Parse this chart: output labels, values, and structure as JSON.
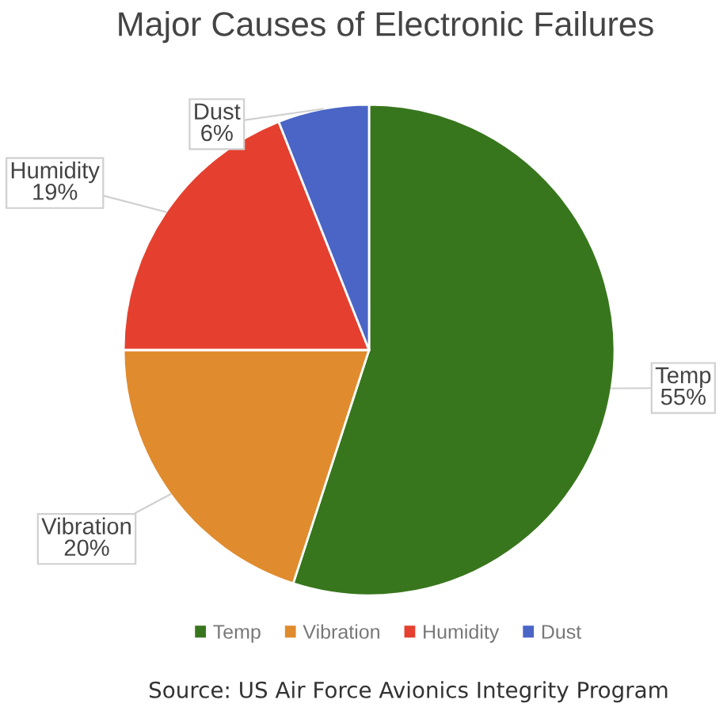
{
  "chart_data": {
    "type": "pie",
    "title": "Major Causes of Electronic Failures",
    "categories": [
      "Temp",
      "Vibration",
      "Humidity",
      "Dust"
    ],
    "values": [
      55,
      20,
      19,
      6
    ],
    "colors": [
      "#38761d",
      "#e08b2e",
      "#e5402f",
      "#4a65c6"
    ],
    "value_labels": [
      "55%",
      "20%",
      "19%",
      "6%"
    ],
    "legend": "bottom",
    "annotations": [
      "Source: US Air Force Avionics Integrity Program"
    ]
  }
}
